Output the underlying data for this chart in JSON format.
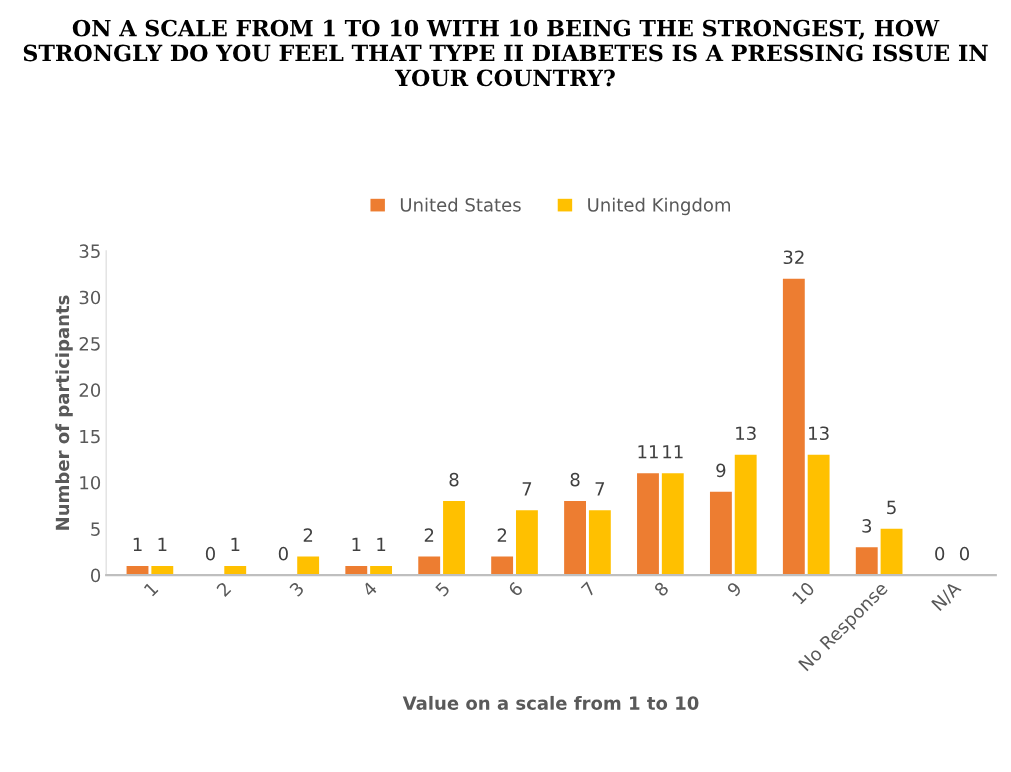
{
  "chart_data": {
    "type": "bar",
    "title": "ON A SCALE FROM 1 TO 10 WITH 10 BEING THE STRONGEST, HOW STRONGLY DO YOU FEEL THAT TYPE II DIABETES IS A PRESSING ISSUE IN YOUR COUNTRY?",
    "xlabel": "Value on a scale from 1 to 10",
    "ylabel": "Number of participants",
    "categories": [
      "1",
      "2",
      "3",
      "4",
      "5",
      "6",
      "7",
      "8",
      "9",
      "10",
      "No Response",
      "N/A"
    ],
    "series": [
      {
        "name": "United States",
        "color": "#ed7d31",
        "values": [
          1,
          0,
          0,
          1,
          2,
          2,
          8,
          11,
          9,
          32,
          3,
          0
        ]
      },
      {
        "name": "United Kingdom",
        "color": "#ffc000",
        "values": [
          1,
          1,
          2,
          1,
          8,
          7,
          7,
          11,
          13,
          13,
          5,
          0
        ]
      }
    ],
    "ylim": [
      0,
      35
    ],
    "yticks": [
      0,
      5,
      10,
      15,
      20,
      25,
      30,
      35
    ],
    "grid": false,
    "legend": "top",
    "data_labels": true
  }
}
